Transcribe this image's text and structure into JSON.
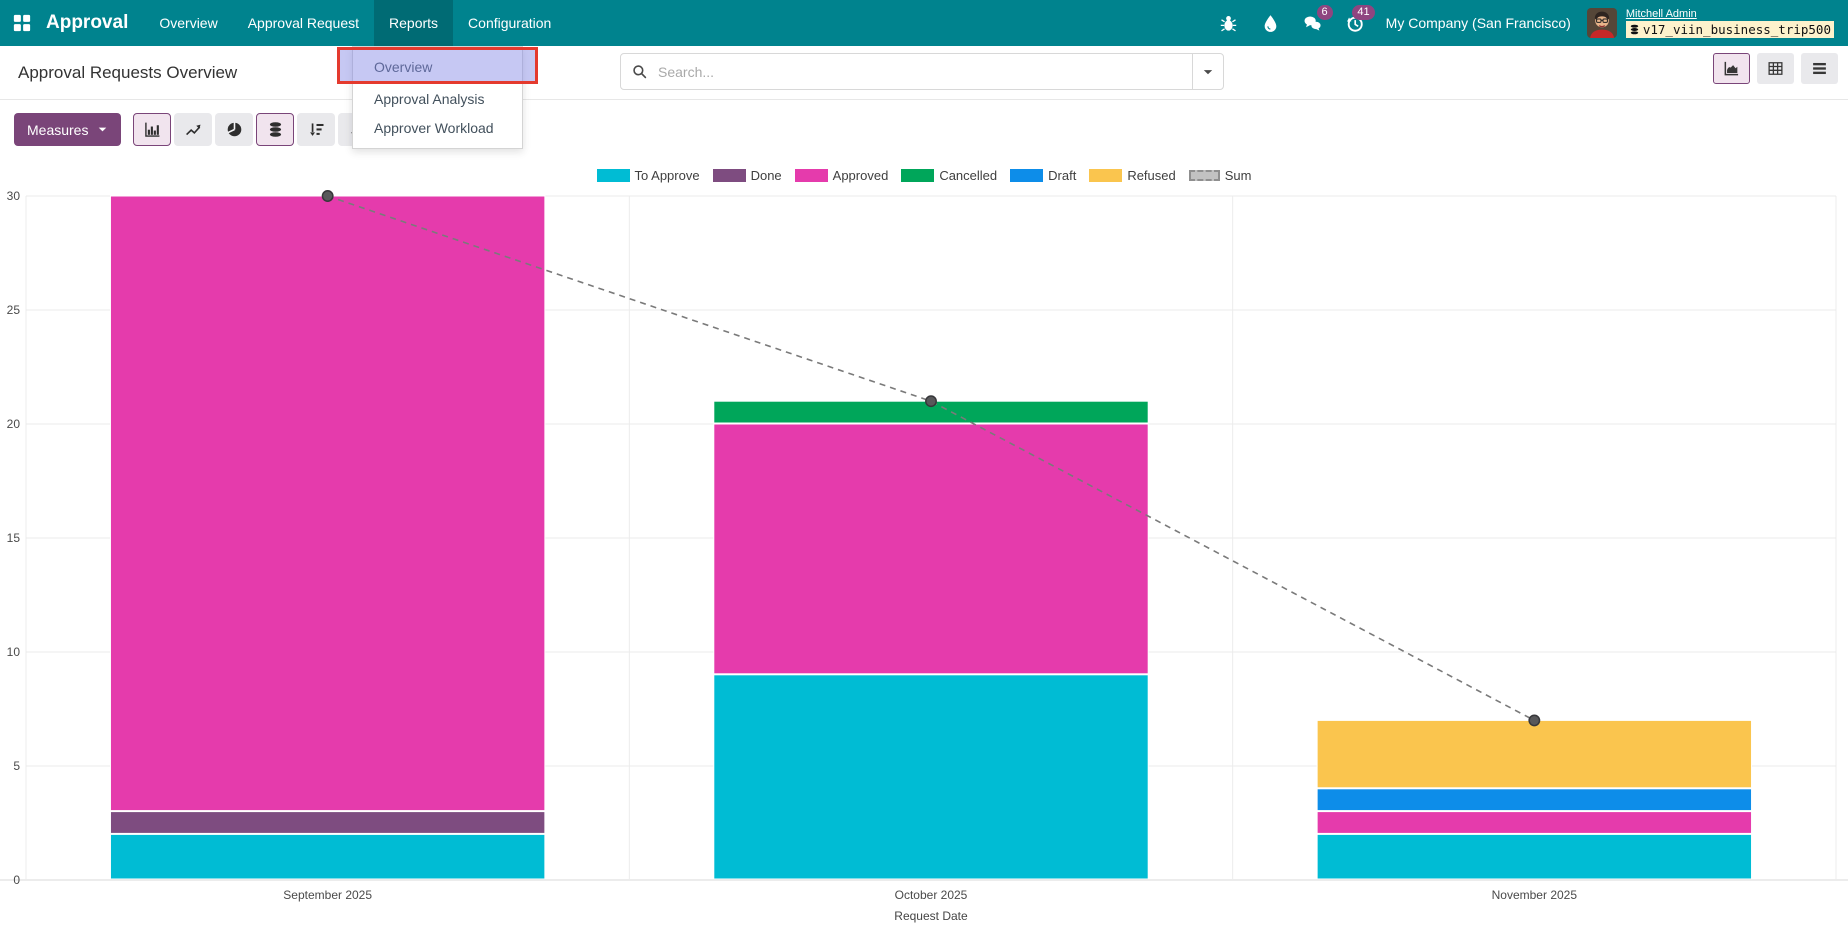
{
  "navbar": {
    "app_name": "Approval",
    "menu_items": [
      {
        "label": "Overview",
        "active": false
      },
      {
        "label": "Approval Request",
        "active": false
      },
      {
        "label": "Reports",
        "active": true
      },
      {
        "label": "Configuration",
        "active": false
      }
    ],
    "systray": {
      "icons": [
        {
          "name": "debug-bug-icon",
          "badge": null
        },
        {
          "name": "inkdrop-icon",
          "badge": null
        },
        {
          "name": "messages-icon",
          "badge": "6"
        },
        {
          "name": "activities-clock-icon",
          "badge": "41"
        }
      ],
      "company": "My Company (San Francisco)",
      "user_name": "Mitchell Admin",
      "database": "v17_viin_business_trip500"
    }
  },
  "control_panel": {
    "title": "Approval Requests Overview",
    "search_placeholder": "Search...",
    "view_switcher": [
      {
        "name": "graph",
        "active": true
      },
      {
        "name": "pivot",
        "active": false
      },
      {
        "name": "list",
        "active": false
      }
    ]
  },
  "reports_dropdown": {
    "items": [
      {
        "label": "Overview",
        "highlighted": true
      },
      {
        "label": "Approval Analysis",
        "highlighted": false
      },
      {
        "label": "Approver Workload",
        "highlighted": false
      }
    ]
  },
  "toolbar": {
    "measures_label": "Measures",
    "buttons": [
      {
        "icon": "bar-chart",
        "active": true
      },
      {
        "icon": "line-chart",
        "active": false
      },
      {
        "icon": "pie-chart",
        "active": false
      },
      {
        "icon": "stacked-bars",
        "active": true
      },
      {
        "icon": "sort-descending",
        "active": false
      },
      {
        "icon": "sort-ascending",
        "active": false
      }
    ]
  },
  "colors": {
    "navbar_bg": "#00838e",
    "primary": "#7a4579",
    "active_btn_bg": "#f1e4ee",
    "badge_bg": "#8f4580",
    "db_badge_bg": "#fdf2cc",
    "annotation_border": "#e43a2e"
  },
  "chart_data": {
    "type": "bar",
    "stacked": true,
    "title": "",
    "categories": [
      "September 2025",
      "October 2025",
      "November 2025"
    ],
    "series": [
      {
        "name": "To Approve",
        "color": "#00bcd4",
        "values": [
          2,
          9,
          2
        ]
      },
      {
        "name": "Done",
        "color": "#7e4c80",
        "values": [
          1,
          0,
          0
        ]
      },
      {
        "name": "Approved",
        "color": "#e53bac",
        "values": [
          27,
          11,
          1
        ]
      },
      {
        "name": "Cancelled",
        "color": "#00a65a",
        "values": [
          0,
          1,
          0
        ]
      },
      {
        "name": "Draft",
        "color": "#0d8de9",
        "values": [
          0,
          0,
          1
        ]
      },
      {
        "name": "Refused",
        "color": "#fac54e",
        "values": [
          0,
          0,
          3
        ]
      }
    ],
    "sum_line": {
      "name": "Sum",
      "color": "#7a7a7a",
      "values": [
        30,
        21,
        7
      ]
    },
    "totals": [
      30,
      21,
      7
    ],
    "xlabel": "Request Date",
    "ylabel": "",
    "ylim": [
      0,
      30
    ],
    "yticks": [
      0,
      5,
      10,
      15,
      20,
      25,
      30
    ],
    "legend_position": "top",
    "grid": true
  }
}
